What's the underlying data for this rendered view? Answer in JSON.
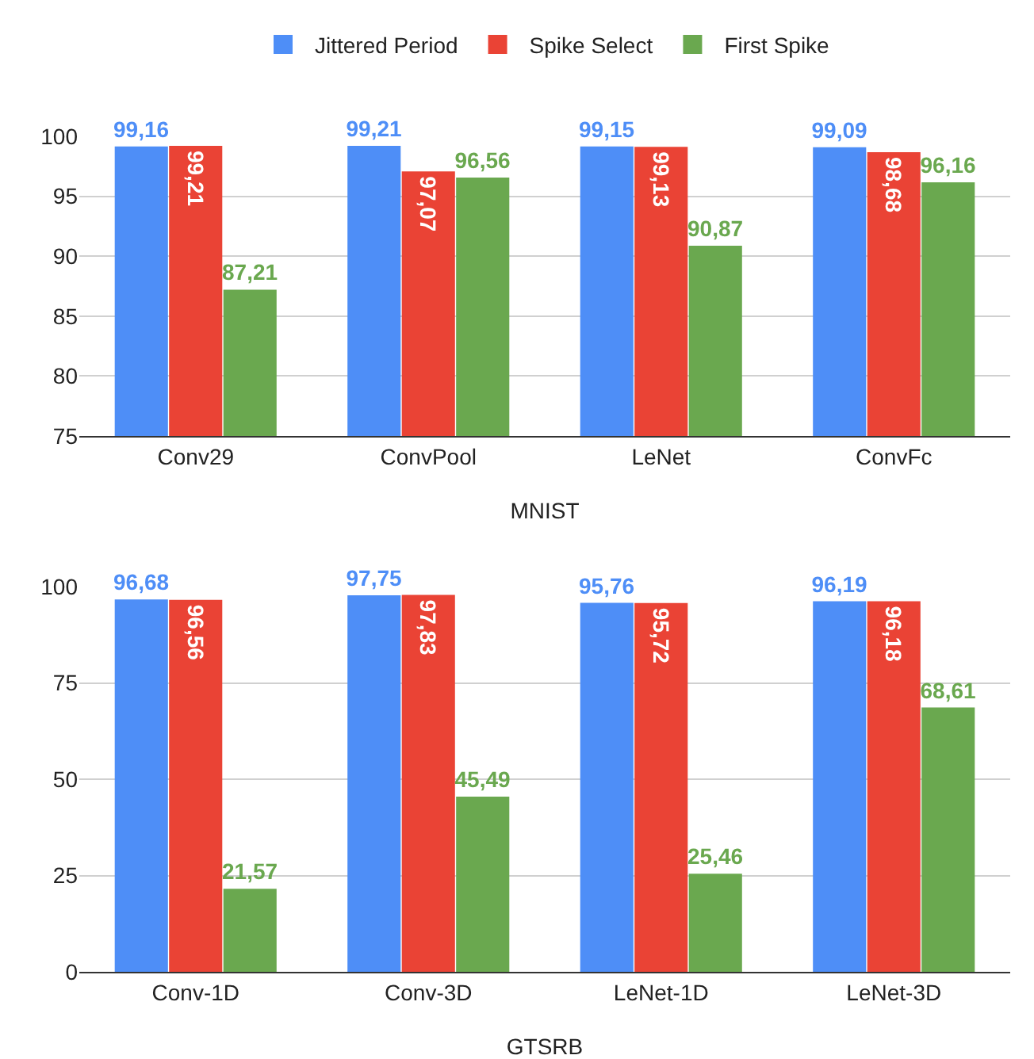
{
  "chart_data": [
    {
      "type": "bar",
      "xlabel": "MNIST",
      "categories": [
        "Conv29",
        "ConvPool",
        "LeNet",
        "ConvFc"
      ],
      "series": [
        {
          "name": "Jittered Period",
          "color": "#4e8ef7",
          "values": [
            99.16,
            99.21,
            99.15,
            99.09
          ],
          "value_labels": [
            "99,16",
            "99,21",
            "99,15",
            "99,09"
          ]
        },
        {
          "name": "Spike Select",
          "color": "#ea4335",
          "values": [
            99.21,
            97.07,
            99.13,
            98.68
          ],
          "value_labels": [
            "99,21",
            "97,07",
            "99,13",
            "98,68"
          ]
        },
        {
          "name": "First Spike",
          "color": "#6aa84f",
          "values": [
            87.21,
            96.56,
            90.87,
            96.16
          ],
          "value_labels": [
            "87,21",
            "96,56",
            "90,87",
            "96,16"
          ]
        }
      ],
      "ylim": [
        75,
        100
      ],
      "yticks": [
        75,
        80,
        85,
        90,
        95,
        100
      ],
      "grid": "y",
      "legend": "top"
    },
    {
      "type": "bar",
      "xlabel": "GTSRB",
      "categories": [
        "Conv-1D",
        "Conv-3D",
        "LeNet-1D",
        "LeNet-3D"
      ],
      "series": [
        {
          "color": "#4e8ef7",
          "values": [
            96.68,
            97.75,
            95.76,
            96.19
          ],
          "value_labels": [
            "96,68",
            "97,75",
            "95,76",
            "96,19"
          ]
        },
        {
          "color": "#ea4335",
          "values": [
            96.56,
            97.83,
            95.72,
            96.18
          ],
          "value_labels": [
            "96,56",
            "97,83",
            "95,72",
            "96,18"
          ]
        },
        {
          "color": "#6aa84f",
          "values": [
            21.57,
            45.49,
            25.46,
            68.61
          ],
          "value_labels": [
            "21,57",
            "45,49",
            "25,46",
            "68,61"
          ]
        }
      ],
      "ylim": [
        0,
        100
      ],
      "yticks": [
        0,
        25,
        50,
        75,
        100
      ],
      "grid": "y"
    }
  ]
}
